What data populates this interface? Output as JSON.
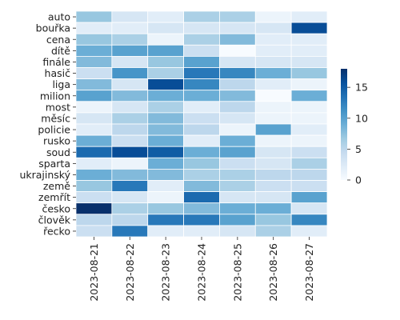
{
  "chart_data": {
    "type": "heatmap",
    "title": "",
    "xlabel": "",
    "ylabel": "",
    "x": [
      "2023-08-21",
      "2023-08-22",
      "2023-08-23",
      "2023-08-24",
      "2023-08-25",
      "2023-08-26",
      "2023-08-27"
    ],
    "y": [
      "auto",
      "bouřka",
      "cena",
      "dítě",
      "finále",
      "hasič",
      "liga",
      "milion",
      "most",
      "měsíc",
      "policie",
      "rusko",
      "soud",
      "sparta",
      "ukrajinský",
      "země",
      "zemřít",
      "česko",
      "člověk",
      "řecko"
    ],
    "values": [
      [
        7,
        3,
        2,
        6,
        6,
        1,
        2
      ],
      [
        2,
        2,
        3,
        3,
        3,
        3,
        16
      ],
      [
        7,
        6,
        1,
        6,
        8,
        2,
        2
      ],
      [
        9,
        10,
        10,
        4,
        0,
        2,
        2
      ],
      [
        8,
        3,
        7,
        10,
        3,
        3,
        3
      ],
      [
        4,
        11,
        6,
        13,
        12,
        9,
        7
      ],
      [
        8,
        3,
        16,
        12,
        5,
        2,
        1
      ],
      [
        10,
        8,
        9,
        9,
        8,
        0,
        9
      ],
      [
        1,
        3,
        6,
        2,
        5,
        1,
        1
      ],
      [
        3,
        6,
        8,
        4,
        3,
        1,
        1
      ],
      [
        2,
        5,
        8,
        5,
        1,
        10,
        2
      ],
      [
        9,
        4,
        9,
        2,
        9,
        1,
        1
      ],
      [
        14,
        16,
        15,
        9,
        10,
        3,
        4
      ],
      [
        2,
        1,
        9,
        7,
        4,
        3,
        6
      ],
      [
        9,
        8,
        8,
        6,
        6,
        5,
        5
      ],
      [
        7,
        13,
        2,
        8,
        6,
        4,
        4
      ],
      [
        4,
        3,
        1,
        14,
        3,
        3,
        10
      ],
      [
        18,
        6,
        7,
        8,
        9,
        9,
        3
      ],
      [
        5,
        5,
        13,
        13,
        10,
        7,
        12
      ],
      [
        4,
        13,
        2,
        2,
        3,
        6,
        2
      ]
    ],
    "colorbar": {
      "min": 0,
      "max": 18,
      "ticks": [
        0,
        5,
        10,
        15
      ]
    },
    "colormap": "Blues",
    "colors": {
      "low": "#f7fbff",
      "high": "#08306b",
      "grid": "#ffffff"
    },
    "legend": "colorbar-right"
  }
}
